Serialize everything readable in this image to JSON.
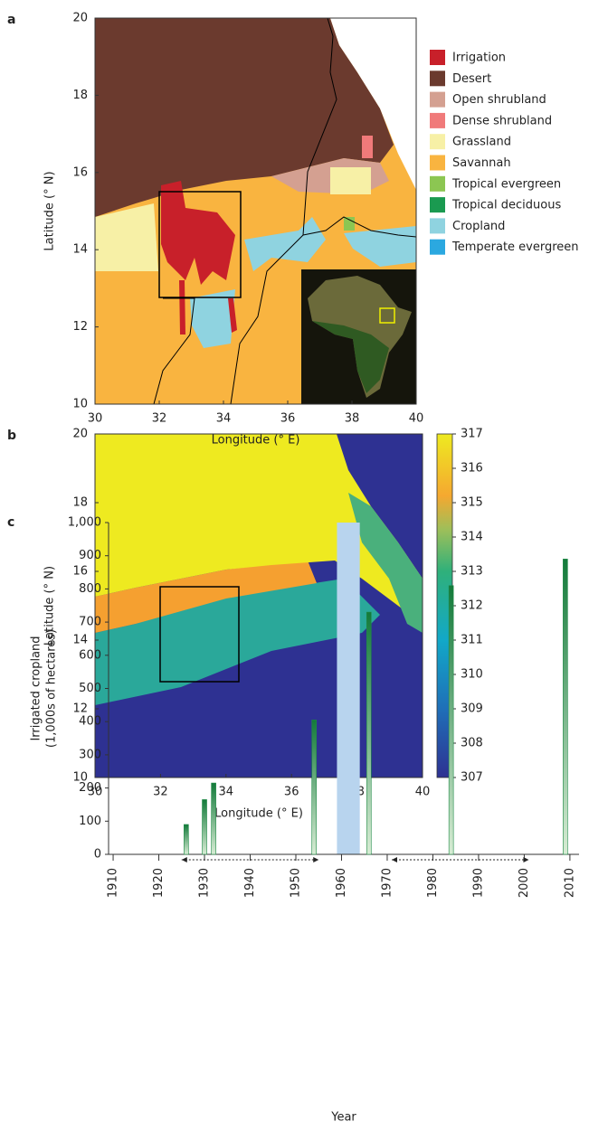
{
  "chart_data": [
    {
      "type": "map",
      "panel": "a",
      "xlabel": "Longitude (° E)",
      "ylabel": "Latitude (° N)",
      "xlim": [
        30,
        40
      ],
      "ylim": [
        10,
        20
      ],
      "xticks": [
        30,
        32,
        34,
        36,
        38,
        40
      ],
      "yticks": [
        10,
        12,
        14,
        16,
        18,
        20
      ],
      "legend_entries": [
        {
          "name": "Irrigation",
          "color": "#c8202a"
        },
        {
          "name": "Desert",
          "color": "#6b3a2e"
        },
        {
          "name": "Open shrubland",
          "color": "#d4a091"
        },
        {
          "name": "Dense shrubland",
          "color": "#f07a7a"
        },
        {
          "name": "Grassland",
          "color": "#f7f0a6"
        },
        {
          "name": "Savannah",
          "color": "#f9b440"
        },
        {
          "name": "Tropical evergreen",
          "color": "#8cc652"
        },
        {
          "name": "Tropical deciduous",
          "color": "#1a9a50"
        },
        {
          "name": "Cropland",
          "color": "#8fd3e0"
        },
        {
          "name": "Temperate evergreen",
          "color": "#2ba8e0"
        }
      ]
    },
    {
      "type": "heatmap",
      "panel": "b",
      "xlabel": "Longitude (° E)",
      "ylabel": "Latitude (° N)",
      "xlim": [
        30,
        40
      ],
      "ylim": [
        10,
        20
      ],
      "xticks": [
        30,
        32,
        34,
        36,
        38,
        40
      ],
      "yticks": [
        10,
        12,
        14,
        16,
        18,
        20
      ],
      "colorbar_lim": [
        307,
        317
      ],
      "colorbar_ticks": [
        307,
        308,
        309,
        310,
        311,
        312,
        313,
        314,
        315,
        316,
        317
      ]
    },
    {
      "type": "bar",
      "panel": "c",
      "xlabel": "Year",
      "ylabel": [
        "Irrigated cropland",
        "(1,000s of hectares)"
      ],
      "x": [
        1926,
        1930,
        1932,
        1954,
        1966,
        1984,
        2009
      ],
      "values": [
        90,
        165,
        215,
        405,
        730,
        810,
        890
      ],
      "color": "#1e8a46",
      "xlim": [
        1909,
        2012
      ],
      "ylim": [
        0,
        1000
      ],
      "xticks": [
        1910,
        1920,
        1930,
        1940,
        1950,
        1960,
        1970,
        1980,
        1990,
        2000,
        2010
      ],
      "yticks": [
        0,
        100,
        200,
        300,
        400,
        500,
        600,
        700,
        800,
        900,
        {
          "value": 1000,
          "label": "1,000"
        }
      ],
      "shaded_span": [
        1959,
        1964
      ],
      "shaded_color": "#b8d4ee",
      "arrows": [
        [
          1925,
          1955
        ],
        [
          1971,
          2001
        ]
      ]
    }
  ]
}
